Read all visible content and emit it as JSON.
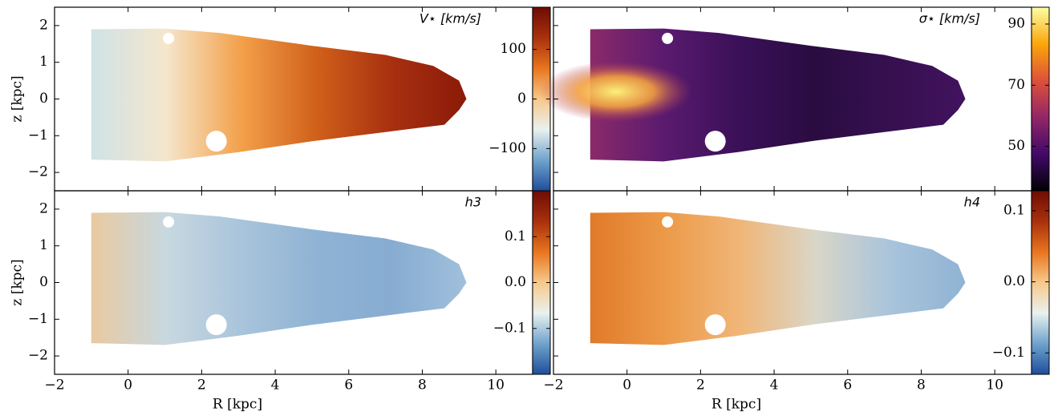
{
  "chart_data": [
    {
      "type": "heatmap",
      "annotation": "V⋆ [km/s]",
      "ylabel": "z [kpc]",
      "xlim": [
        -2,
        11
      ],
      "ylim": [
        -2.5,
        2.5
      ],
      "yticks": [
        {
          "value": -2,
          "label": "−2"
        },
        {
          "value": -1,
          "label": "−1"
        },
        0,
        1,
        2
      ],
      "map_colors": [
        "#cfe3e6",
        "#f5e6cc",
        "#f3a04a",
        "#d0601a",
        "#a83010",
        "#8a1a08"
      ],
      "colorbar": {
        "lim": [
          -185,
          185
        ],
        "ticks": [
          {
            "value": -100,
            "label": "−100"
          },
          0,
          100
        ],
        "colors": [
          "#1f4e9c",
          "#6fa3cc",
          "#e9f1ef",
          "#f7c98a",
          "#e8751e",
          "#a8300d",
          "#6e0c04"
        ]
      }
    },
    {
      "type": "heatmap",
      "annotation": "σ⋆ [km/s]",
      "xlim": [
        -2,
        11
      ],
      "ylim": [
        -2.5,
        2.5
      ],
      "map_colors": [
        "#8a2a6a",
        "#5a1a6e",
        "#3a1058",
        "#2a0c40",
        "#361050",
        "#42125e"
      ],
      "colorbar": {
        "lim": [
          35.5,
          95.5
        ],
        "ticks": [
          50,
          70,
          90
        ],
        "colors": [
          "#000004",
          "#420a68",
          "#932667",
          "#dd513a",
          "#fca50a",
          "#fcffa4"
        ]
      }
    },
    {
      "type": "heatmap",
      "annotation": "h3",
      "ylabel": "z [kpc]",
      "xlabel": "R [kpc]",
      "xlim": [
        -2,
        11
      ],
      "ylim": [
        -2.5,
        2.5
      ],
      "xticks": [
        {
          "value": -2,
          "label": "−2"
        },
        0,
        2,
        4,
        6,
        8,
        10
      ],
      "yticks": [
        {
          "value": -2,
          "label": "−2"
        },
        {
          "value": -1,
          "label": "−1"
        },
        0,
        1,
        2
      ],
      "map_colors": [
        "#e9c9a0",
        "#c8d8e0",
        "#a9c4db",
        "#8fb3d4",
        "#87acd1",
        "#a0c0dc"
      ],
      "colorbar": {
        "lim": [
          -0.2,
          0.2
        ],
        "ticks": [
          {
            "value": -0.1,
            "label": "−0.1"
          },
          {
            "value": 0,
            "label": "0.0"
          },
          0.1
        ],
        "colors": [
          "#1f4e9c",
          "#6fa3cc",
          "#e9f1ef",
          "#f7c98a",
          "#e8751e",
          "#a8300d",
          "#6e0c04"
        ]
      }
    },
    {
      "type": "heatmap",
      "annotation": "h4",
      "xlabel": "R [kpc]",
      "xlim": [
        -2,
        11
      ],
      "ylim": [
        -2.5,
        2.5
      ],
      "xticks": [
        {
          "value": -2,
          "label": "−2"
        },
        0,
        2,
        4,
        6,
        8,
        10
      ],
      "map_colors": [
        "#e07a2a",
        "#ec9a48",
        "#f0b678",
        "#d9d6c8",
        "#a9c4db",
        "#8fb3d4"
      ],
      "colorbar": {
        "lim": [
          -0.13,
          0.128
        ],
        "ticks": [
          {
            "value": -0.1,
            "label": "−0.1"
          },
          {
            "value": 0,
            "label": "0.0"
          },
          0.1
        ],
        "colors": [
          "#1f4e9c",
          "#6fa3cc",
          "#e9f1ef",
          "#f7c98a",
          "#e8751e",
          "#a8300d",
          "#6e0c04"
        ]
      }
    }
  ]
}
